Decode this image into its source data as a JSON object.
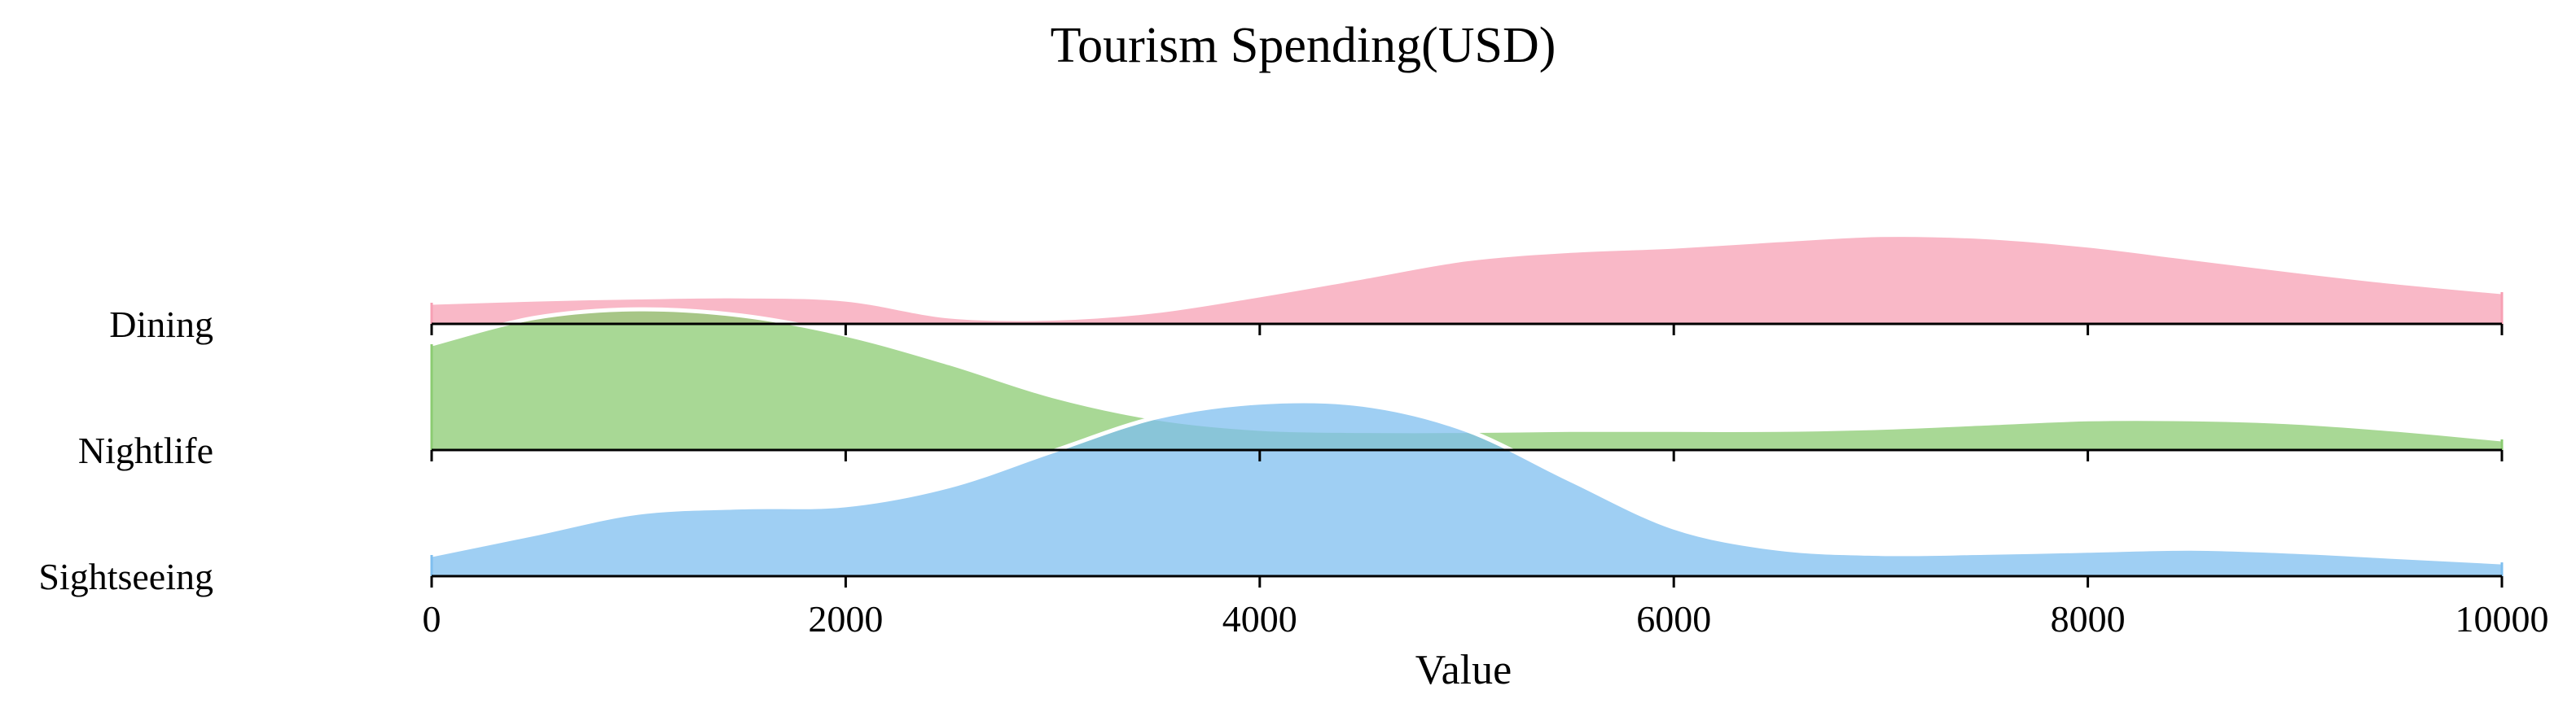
{
  "chart_data": {
    "type": "area",
    "subtype": "ridgeline-density",
    "title": "Tourism Spending(USD)",
    "xlabel": "Value",
    "ylabel": "",
    "xlim": [
      0,
      10000
    ],
    "xticks": [
      "0",
      "2000",
      "4000",
      "6000",
      "8000",
      "10000"
    ],
    "grid": false,
    "legend": "none",
    "series": [
      {
        "name": "Dining",
        "color": "#f7a0b4",
        "x": [
          0,
          500,
          1000,
          1500,
          2000,
          2500,
          3000,
          3500,
          4000,
          4500,
          5000,
          5500,
          6000,
          6500,
          7000,
          7500,
          8000,
          8500,
          9000,
          9500,
          10000
        ],
        "density": [
          0.2,
          0.23,
          0.25,
          0.26,
          0.23,
          0.07,
          0.05,
          0.12,
          0.27,
          0.44,
          0.61,
          0.69,
          0.73,
          0.79,
          0.84,
          0.82,
          0.74,
          0.62,
          0.5,
          0.39,
          0.3
        ]
      },
      {
        "name": "Nightlife",
        "color": "#8bcb72",
        "x": [
          0,
          500,
          1000,
          1500,
          2000,
          2500,
          3000,
          3500,
          4000,
          4500,
          5000,
          5500,
          6000,
          6500,
          7000,
          7500,
          8000,
          8500,
          9000,
          9500,
          10000
        ],
        "density": [
          1.0,
          1.25,
          1.33,
          1.27,
          1.09,
          0.82,
          0.51,
          0.3,
          0.2,
          0.18,
          0.18,
          0.19,
          0.19,
          0.19,
          0.21,
          0.25,
          0.29,
          0.29,
          0.26,
          0.19,
          0.1
        ]
      },
      {
        "name": "Sightseeing",
        "color": "#7fbfef",
        "x": [
          0,
          500,
          1000,
          1500,
          2000,
          2500,
          3000,
          3500,
          4000,
          4500,
          5000,
          5500,
          6000,
          6500,
          7000,
          7500,
          8000,
          8500,
          9000,
          9500,
          10000
        ],
        "density": [
          0.2,
          0.4,
          0.6,
          0.65,
          0.67,
          0.85,
          1.18,
          1.5,
          1.64,
          1.62,
          1.38,
          0.91,
          0.46,
          0.26,
          0.21,
          0.22,
          0.24,
          0.26,
          0.23,
          0.18,
          0.13
        ]
      }
    ]
  }
}
